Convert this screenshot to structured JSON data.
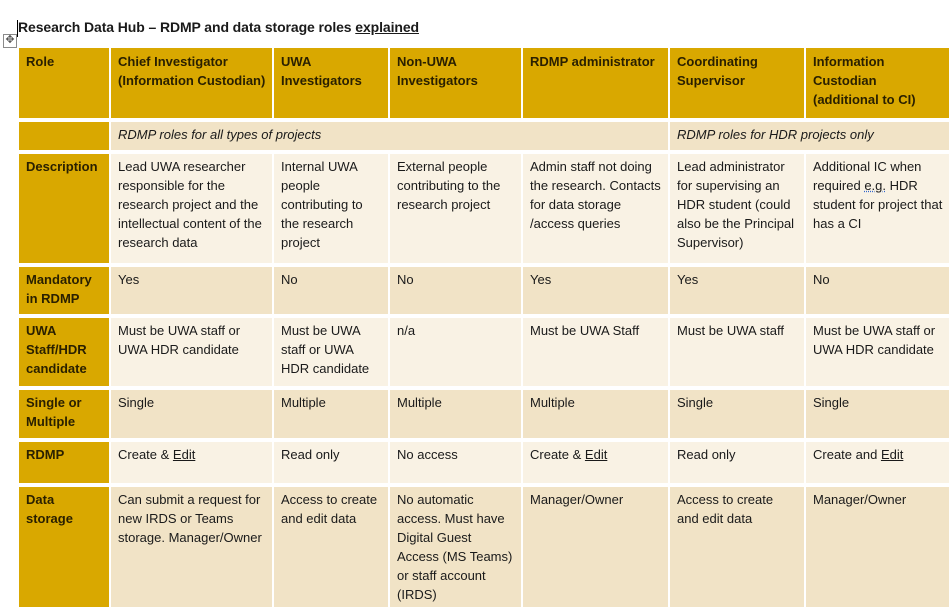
{
  "title": {
    "text_a": "Research Data Hub – RDMP and data storage roles ",
    "text_b": "explained"
  },
  "table": {
    "headers": [
      "Role",
      "Chief Investigator (Information Custodian)",
      "UWA Investigators",
      "Non-UWA Investigators",
      "RDMP administrator",
      "Coordinating Supervisor",
      "Information Custodian (additional to CI)"
    ],
    "subheader": {
      "all": "RDMP roles for all types of projects",
      "hdr": "RDMP roles for HDR projects only"
    },
    "rows": [
      {
        "label": "Description",
        "cells": [
          "Lead UWA researcher responsible for the research project and the intellectual content of the research data",
          "Internal UWA people contributing to the research project",
          "External people contributing to the research project",
          "Admin staff not doing the research. Contacts for data storage /access queries",
          "Lead administrator for supervising an HDR student (could also be the Principal Supervisor)",
          "Additional IC when required e.g. HDR student for project that has a CI"
        ]
      },
      {
        "label": "Mandatory in RDMP",
        "cells": [
          "Yes",
          "No",
          "No",
          "Yes",
          "Yes",
          "No"
        ]
      },
      {
        "label": "UWA Staff/HDR candidate",
        "cells": [
          "Must be UWA staff or UWA HDR candidate",
          "Must be UWA staff or UWA HDR candidate",
          "n/a",
          "Must be UWA Staff",
          "Must be UWA staff",
          "Must be UWA staff or UWA HDR candidate"
        ]
      },
      {
        "label": "Single or Multiple",
        "cells": [
          "Single",
          "Multiple",
          "Multiple",
          "Multiple",
          "Single",
          "Single"
        ]
      },
      {
        "label": "RDMP",
        "cells": [
          "Create & Edit",
          "Read only",
          "No access",
          "Create & Edit",
          "Read only",
          "Create and Edit"
        ]
      },
      {
        "label": "Data storage",
        "cells": [
          "Can submit a request for new IRDS or Teams storage. Manager/Owner",
          "Access to create and edit data",
          "No automatic access. Must have Digital Guest Access (MS Teams) or staff account (IRDS)",
          "Manager/Owner",
          "Access to create and edit data",
          "Manager/Owner"
        ]
      }
    ]
  }
}
